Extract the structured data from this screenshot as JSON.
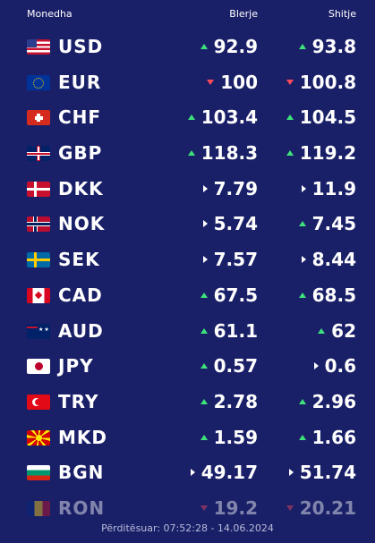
{
  "header": {
    "currency_label": "Monedha",
    "buy_label": "Blerje",
    "sell_label": "Shitje"
  },
  "rates": [
    {
      "code": "USD",
      "flag_icon": "us-flag-icon",
      "buy": "92.9",
      "buy_trend": "up",
      "sell": "93.8",
      "sell_trend": "up"
    },
    {
      "code": "EUR",
      "flag_icon": "eu-flag-icon",
      "buy": "100",
      "buy_trend": "down",
      "sell": "100.8",
      "sell_trend": "down"
    },
    {
      "code": "CHF",
      "flag_icon": "ch-flag-icon",
      "buy": "103.4",
      "buy_trend": "up",
      "sell": "104.5",
      "sell_trend": "up"
    },
    {
      "code": "GBP",
      "flag_icon": "gb-flag-icon",
      "buy": "118.3",
      "buy_trend": "up",
      "sell": "119.2",
      "sell_trend": "up"
    },
    {
      "code": "DKK",
      "flag_icon": "dk-flag-icon",
      "buy": "7.79",
      "buy_trend": "same",
      "sell": "11.9",
      "sell_trend": "same"
    },
    {
      "code": "NOK",
      "flag_icon": "no-flag-icon",
      "buy": "5.74",
      "buy_trend": "same",
      "sell": "7.45",
      "sell_trend": "up"
    },
    {
      "code": "SEK",
      "flag_icon": "se-flag-icon",
      "buy": "7.57",
      "buy_trend": "same",
      "sell": "8.44",
      "sell_trend": "same"
    },
    {
      "code": "CAD",
      "flag_icon": "ca-flag-icon",
      "buy": "67.5",
      "buy_trend": "up",
      "sell": "68.5",
      "sell_trend": "up"
    },
    {
      "code": "AUD",
      "flag_icon": "au-flag-icon",
      "buy": "61.1",
      "buy_trend": "up",
      "sell": "62",
      "sell_trend": "up"
    },
    {
      "code": "JPY",
      "flag_icon": "jp-flag-icon",
      "buy": "0.57",
      "buy_trend": "up",
      "sell": "0.6",
      "sell_trend": "same"
    },
    {
      "code": "TRY",
      "flag_icon": "tr-flag-icon",
      "buy": "2.78",
      "buy_trend": "up",
      "sell": "2.96",
      "sell_trend": "up"
    },
    {
      "code": "MKD",
      "flag_icon": "mk-flag-icon",
      "buy": "1.59",
      "buy_trend": "up",
      "sell": "1.66",
      "sell_trend": "up"
    },
    {
      "code": "BGN",
      "flag_icon": "bg-flag-icon",
      "buy": "49.17",
      "buy_trend": "same",
      "sell": "51.74",
      "sell_trend": "same"
    },
    {
      "code": "RON",
      "flag_icon": "ro-flag-icon",
      "buy": "19.2",
      "buy_trend": "down",
      "sell": "20.21",
      "sell_trend": "down"
    }
  ],
  "footer": {
    "updated_text": "Përditësuar: 07:52:28 - 14.06.2024"
  },
  "colors": {
    "background": "#1a2068",
    "up": "#3ee27a",
    "down": "#ff4a5a",
    "same": "#ffffff"
  }
}
